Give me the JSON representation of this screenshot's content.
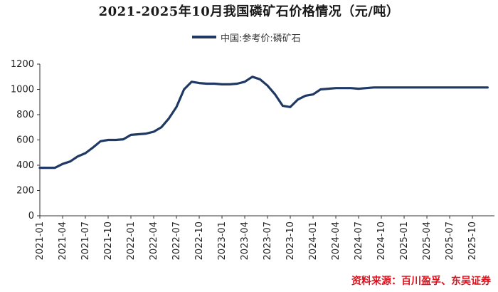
{
  "title": "2021-2025年10月我国磷矿石价格情况（元/吨）",
  "source": "资料来源：百川盈孚、东吴证券",
  "colors": {
    "series": "#1f3864",
    "source_text": "#e0101c",
    "axis": "#333333"
  },
  "chart_data": {
    "type": "line",
    "title": "2021-2025年10月我国磷矿石价格情况（元/吨）",
    "xlabel": "",
    "ylabel": "",
    "ylim": [
      0,
      1200
    ],
    "yticks": [
      0,
      200,
      400,
      600,
      800,
      1000,
      1200
    ],
    "xlim": [
      "2021-01",
      "2025-12"
    ],
    "xticks": [
      "2021-01",
      "2021-04",
      "2021-07",
      "2021-10",
      "2022-01",
      "2022-04",
      "2022-07",
      "2022-10",
      "2023-01",
      "2023-04",
      "2023-07",
      "2023-10",
      "2024-01",
      "2024-04",
      "2024-07",
      "2024-10",
      "2025-01",
      "2025-04",
      "2025-07",
      "2025-10"
    ],
    "grid": false,
    "legend": "top-center",
    "series": [
      {
        "name": "中国:参考价:磷矿石",
        "color": "#1f3864",
        "points": [
          [
            "2021-01",
            380
          ],
          [
            "2021-02",
            380
          ],
          [
            "2021-03",
            380
          ],
          [
            "2021-04",
            410
          ],
          [
            "2021-05",
            430
          ],
          [
            "2021-06",
            470
          ],
          [
            "2021-07",
            495
          ],
          [
            "2021-08",
            540
          ],
          [
            "2021-09",
            590
          ],
          [
            "2021-10",
            600
          ],
          [
            "2021-11",
            600
          ],
          [
            "2021-12",
            605
          ],
          [
            "2022-01",
            640
          ],
          [
            "2022-02",
            645
          ],
          [
            "2022-03",
            650
          ],
          [
            "2022-04",
            665
          ],
          [
            "2022-05",
            700
          ],
          [
            "2022-06",
            770
          ],
          [
            "2022-07",
            860
          ],
          [
            "2022-08",
            1000
          ],
          [
            "2022-09",
            1060
          ],
          [
            "2022-10",
            1050
          ],
          [
            "2022-11",
            1045
          ],
          [
            "2022-12",
            1045
          ],
          [
            "2023-01",
            1040
          ],
          [
            "2023-02",
            1040
          ],
          [
            "2023-03",
            1045
          ],
          [
            "2023-04",
            1060
          ],
          [
            "2023-05",
            1100
          ],
          [
            "2023-06",
            1080
          ],
          [
            "2023-07",
            1030
          ],
          [
            "2023-08",
            960
          ],
          [
            "2023-09",
            870
          ],
          [
            "2023-10",
            860
          ],
          [
            "2023-11",
            920
          ],
          [
            "2023-12",
            950
          ],
          [
            "2024-01",
            960
          ],
          [
            "2024-02",
            1000
          ],
          [
            "2024-03",
            1005
          ],
          [
            "2024-04",
            1010
          ],
          [
            "2024-05",
            1010
          ],
          [
            "2024-06",
            1010
          ],
          [
            "2024-07",
            1005
          ],
          [
            "2024-08",
            1010
          ],
          [
            "2024-09",
            1015
          ],
          [
            "2024-10",
            1015
          ],
          [
            "2024-11",
            1015
          ],
          [
            "2024-12",
            1015
          ],
          [
            "2025-01",
            1015
          ],
          [
            "2025-02",
            1015
          ],
          [
            "2025-03",
            1015
          ],
          [
            "2025-04",
            1015
          ],
          [
            "2025-05",
            1015
          ],
          [
            "2025-06",
            1015
          ],
          [
            "2025-07",
            1015
          ],
          [
            "2025-08",
            1015
          ],
          [
            "2025-09",
            1015
          ],
          [
            "2025-10",
            1015
          ],
          [
            "2025-11",
            1015
          ],
          [
            "2025-12",
            1015
          ]
        ]
      }
    ]
  }
}
